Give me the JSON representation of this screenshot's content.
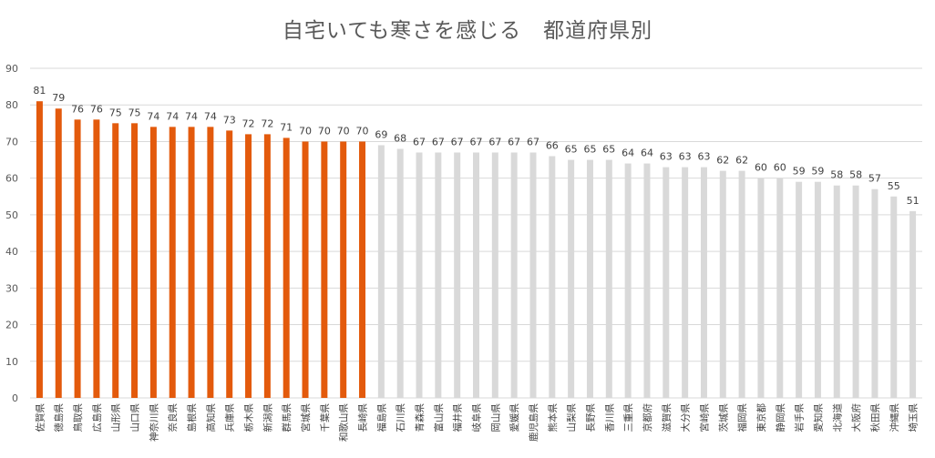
{
  "chart_data": {
    "type": "bar",
    "title": "自宅いても寒さを感じる　都道府県別",
    "xlabel": "",
    "ylabel": "",
    "ylim": [
      0,
      90
    ],
    "yticks": [
      0,
      10,
      20,
      30,
      40,
      50,
      60,
      70,
      80,
      90
    ],
    "grid": true,
    "legend": "none",
    "colors": {
      "highlight": "#E35A0C",
      "normal": "#D9D9D9",
      "grid": "#D9D9D9"
    },
    "highlight_count": 18,
    "categories": [
      "佐賀県",
      "徳島県",
      "鳥取県",
      "広島県",
      "山形県",
      "山口県",
      "神奈川県",
      "奈良県",
      "島根県",
      "高知県",
      "兵庫県",
      "栃木県",
      "新潟県",
      "群馬県",
      "宮城県",
      "千葉県",
      "和歌山県",
      "長崎県",
      "福島県",
      "石川県",
      "青森県",
      "富山県",
      "福井県",
      "岐阜県",
      "岡山県",
      "愛媛県",
      "鹿児島県",
      "熊本県",
      "山梨県",
      "長野県",
      "香川県",
      "三重県",
      "京都府",
      "滋賀県",
      "大分県",
      "宮崎県",
      "茨城県",
      "福岡県",
      "東京都",
      "静岡県",
      "岩手県",
      "愛知県",
      "北海道",
      "大阪府",
      "秋田県",
      "沖縄県",
      "埼玉県"
    ],
    "values": [
      81,
      79,
      76,
      76,
      75,
      75,
      74,
      74,
      74,
      74,
      73,
      72,
      72,
      71,
      70,
      70,
      70,
      70,
      69,
      68,
      67,
      67,
      67,
      67,
      67,
      67,
      67,
      66,
      65,
      65,
      65,
      64,
      64,
      63,
      63,
      63,
      62,
      62,
      60,
      60,
      59,
      59,
      58,
      58,
      57,
      55,
      51
    ]
  }
}
